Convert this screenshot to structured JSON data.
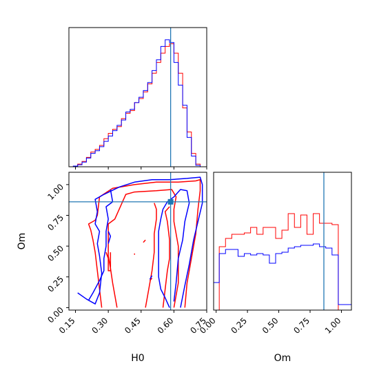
{
  "chart_data": {
    "type": "corner",
    "parameters": [
      "H0",
      "Om"
    ],
    "colors": {
      "red": "#ff0000",
      "blue": "#0000ff",
      "truth": "#1f77b4"
    },
    "truth": {
      "H0": 0.585,
      "Om": 0.86
    },
    "panels": [
      {
        "id": "hist-H0",
        "type": "step-histogram",
        "xlim": [
          0.12,
          0.75
        ],
        "bin_edges": [
          0.12,
          0.14,
          0.16,
          0.18,
          0.2,
          0.22,
          0.24,
          0.26,
          0.28,
          0.3,
          0.32,
          0.34,
          0.36,
          0.38,
          0.4,
          0.42,
          0.44,
          0.46,
          0.48,
          0.5,
          0.52,
          0.54,
          0.56,
          0.58,
          0.6,
          0.62,
          0.64,
          0.66,
          0.68,
          0.7,
          0.72,
          0.74
        ],
        "series": [
          {
            "color": "red",
            "values": [
              0.0,
              0.005,
              0.02,
              0.04,
              0.07,
              0.11,
              0.13,
              0.16,
              0.21,
              0.25,
              0.28,
              0.3,
              0.36,
              0.4,
              0.42,
              0.48,
              0.51,
              0.56,
              0.62,
              0.7,
              0.78,
              0.85,
              0.9,
              0.92,
              0.85,
              0.7,
              0.44,
              0.26,
              0.1,
              0.02,
              0.0
            ]
          },
          {
            "color": "blue",
            "values": [
              0.0,
              0.005,
              0.015,
              0.035,
              0.065,
              0.1,
              0.12,
              0.15,
              0.19,
              0.23,
              0.27,
              0.31,
              0.35,
              0.41,
              0.43,
              0.48,
              0.52,
              0.57,
              0.63,
              0.72,
              0.8,
              0.9,
              0.95,
              0.93,
              0.78,
              0.61,
              0.46,
              0.22,
              0.08,
              0.01,
              0.0
            ]
          }
        ]
      },
      {
        "id": "hist-Om",
        "type": "step-histogram",
        "xlim": [
          -0.02,
          1.08
        ],
        "bin_edges": [
          -0.02,
          0.025,
          0.075,
          0.125,
          0.175,
          0.225,
          0.275,
          0.325,
          0.375,
          0.425,
          0.475,
          0.525,
          0.575,
          0.625,
          0.675,
          0.725,
          0.775,
          0.825,
          0.875,
          0.925,
          0.975,
          1.02,
          1.08
        ],
        "series": [
          {
            "color": "red",
            "values": [
              0.0,
              0.46,
              0.52,
              0.55,
              0.55,
              0.56,
              0.6,
              0.55,
              0.6,
              0.6,
              0.52,
              0.58,
              0.7,
              0.6,
              0.69,
              0.55,
              0.7,
              0.63,
              0.63,
              0.62,
              0.0,
              0.0
            ]
          },
          {
            "color": "blue",
            "values": [
              0.2,
              0.41,
              0.44,
              0.44,
              0.39,
              0.41,
              0.4,
              0.41,
              0.4,
              0.34,
              0.41,
              0.42,
              0.45,
              0.46,
              0.47,
              0.47,
              0.48,
              0.46,
              0.45,
              0.4,
              0.04,
              0.04
            ]
          }
        ]
      },
      {
        "id": "contour-H0-Om",
        "type": "contour",
        "xlim": [
          0.12,
          0.75
        ],
        "ylim": [
          -0.02,
          1.1
        ],
        "series": [
          {
            "color": "red",
            "paths": [
              [
                [
                  0.27,
                  0.0
                ],
                [
                  0.26,
                  0.15
                ],
                [
                  0.25,
                  0.3
                ],
                [
                  0.24,
                  0.45
                ],
                [
                  0.23,
                  0.55
                ],
                [
                  0.22,
                  0.63
                ],
                [
                  0.21,
                  0.68
                ],
                [
                  0.24,
                  0.71
                ],
                [
                  0.25,
                  0.75
                ],
                [
                  0.26,
                  0.9
                ],
                [
                  0.32,
                  0.97
                ],
                [
                  0.42,
                  1.0
                ],
                [
                  0.52,
                  1.02
                ],
                [
                  0.62,
                  1.02
                ],
                [
                  0.7,
                  1.03
                ],
                [
                  0.72,
                  1.04
                ],
                [
                  0.72,
                  0.95
                ],
                [
                  0.71,
                  0.8
                ],
                [
                  0.7,
                  0.6
                ],
                [
                  0.68,
                  0.4
                ],
                [
                  0.66,
                  0.2
                ],
                [
                  0.65,
                  0.0
                ]
              ],
              [
                [
                  0.34,
                  0.0
                ],
                [
                  0.33,
                  0.1
                ],
                [
                  0.32,
                  0.2
                ],
                [
                  0.31,
                  0.32
                ],
                [
                  0.3,
                  0.42
                ],
                [
                  0.3,
                  0.55
                ],
                [
                  0.3,
                  0.68
                ],
                [
                  0.33,
                  0.72
                ],
                [
                  0.35,
                  0.8
                ],
                [
                  0.38,
                  0.92
                ],
                [
                  0.42,
                  0.94
                ],
                [
                  0.52,
                  0.95
                ],
                [
                  0.59,
                  0.96
                ],
                [
                  0.61,
                  0.9
                ],
                [
                  0.6,
                  0.8
                ],
                [
                  0.6,
                  0.7
                ],
                [
                  0.61,
                  0.6
                ],
                [
                  0.62,
                  0.5
                ],
                [
                  0.62,
                  0.4
                ],
                [
                  0.62,
                  0.3
                ],
                [
                  0.62,
                  0.2
                ],
                [
                  0.61,
                  0.1
                ],
                [
                  0.6,
                  0.0
                ]
              ],
              [
                [
                  0.47,
                  0.0
                ],
                [
                  0.48,
                  0.1
                ],
                [
                  0.49,
                  0.2
                ],
                [
                  0.5,
                  0.3
                ],
                [
                  0.51,
                  0.45
                ],
                [
                  0.51,
                  0.6
                ],
                [
                  0.52,
                  0.72
                ],
                [
                  0.52,
                  0.8
                ],
                [
                  0.51,
                  0.85
                ]
              ],
              [
                [
                  0.55,
                  0.0
                ],
                [
                  0.56,
                  0.15
                ],
                [
                  0.57,
                  0.3
                ],
                [
                  0.58,
                  0.4
                ],
                [
                  0.58,
                  0.55
                ],
                [
                  0.57,
                  0.7
                ],
                [
                  0.56,
                  0.78
                ],
                [
                  0.58,
                  0.82
                ]
              ],
              [
                [
                  0.29,
                  0.45
                ],
                [
                  0.3,
                  0.4
                ],
                [
                  0.3,
                  0.3
                ],
                [
                  0.31,
                  0.3
                ],
                [
                  0.31,
                  0.45
                ]
              ],
              [
                [
                  0.46,
                  0.53
                ],
                [
                  0.47,
                  0.55
                ]
              ],
              [
                [
                  0.49,
                  0.22
                ],
                [
                  0.5,
                  0.24
                ]
              ],
              [
                [
                  0.42,
                  0.43
                ],
                [
                  0.42,
                  0.44
                ]
              ]
            ]
          },
          {
            "color": "blue",
            "paths": [
              [
                [
                  0.16,
                  0.12
                ],
                [
                  0.2,
                  0.07
                ],
                [
                  0.24,
                  0.03
                ],
                [
                  0.26,
                  0.12
                ],
                [
                  0.27,
                  0.28
                ],
                [
                  0.26,
                  0.42
                ],
                [
                  0.25,
                  0.52
                ],
                [
                  0.26,
                  0.62
                ],
                [
                  0.24,
                  0.68
                ],
                [
                  0.25,
                  0.78
                ],
                [
                  0.24,
                  0.88
                ],
                [
                  0.28,
                  0.92
                ],
                [
                  0.35,
                  0.98
                ],
                [
                  0.42,
                  1.02
                ],
                [
                  0.5,
                  1.04
                ],
                [
                  0.58,
                  1.04
                ],
                [
                  0.66,
                  1.05
                ],
                [
                  0.72,
                  1.06
                ],
                [
                  0.73,
                  1.0
                ],
                [
                  0.73,
                  0.85
                ],
                [
                  0.71,
                  0.7
                ],
                [
                  0.69,
                  0.55
                ],
                [
                  0.67,
                  0.35
                ],
                [
                  0.65,
                  0.18
                ],
                [
                  0.63,
                  0.0
                ]
              ],
              [
                [
                  0.31,
                  0.96
                ],
                [
                  0.32,
                  0.86
                ],
                [
                  0.29,
                  0.82
                ],
                [
                  0.3,
                  0.72
                ],
                [
                  0.29,
                  0.62
                ],
                [
                  0.29,
                  0.5
                ],
                [
                  0.28,
                  0.4
                ],
                [
                  0.28,
                  0.3
                ],
                [
                  0.26,
                  0.22
                ],
                [
                  0.23,
                  0.12
                ],
                [
                  0.21,
                  0.06
                ]
              ],
              [
                [
                  0.58,
                  0.0
                ],
                [
                  0.56,
                  0.08
                ],
                [
                  0.54,
                  0.15
                ],
                [
                  0.53,
                  0.25
                ],
                [
                  0.53,
                  0.38
                ],
                [
                  0.53,
                  0.5
                ],
                [
                  0.53,
                  0.62
                ],
                [
                  0.54,
                  0.72
                ],
                [
                  0.55,
                  0.8
                ],
                [
                  0.57,
                  0.86
                ],
                [
                  0.6,
                  0.9
                ],
                [
                  0.63,
                  0.96
                ],
                [
                  0.66,
                  0.95
                ],
                [
                  0.67,
                  0.85
                ],
                [
                  0.65,
                  0.7
                ],
                [
                  0.64,
                  0.55
                ],
                [
                  0.62,
                  0.4
                ],
                [
                  0.61,
                  0.2
                ],
                [
                  0.6,
                  0.05
                ]
              ],
              [
                [
                  0.3,
                  0.52
                ],
                [
                  0.31,
                  0.58
                ],
                [
                  0.3,
                  0.62
                ]
              ],
              [
                [
                  0.49,
                  0.23
                ],
                [
                  0.5,
                  0.26
                ]
              ]
            ]
          }
        ]
      }
    ],
    "axes": {
      "H0": {
        "label": "H0",
        "ticks": [
          0.15,
          0.3,
          0.45,
          0.6,
          0.75
        ],
        "tick_labels": [
          "0.15",
          "0.30",
          "0.45",
          "0.60",
          "0.75"
        ]
      },
      "Om_y": {
        "label": "Om",
        "ticks": [
          0.0,
          0.25,
          0.5,
          0.75,
          1.0
        ],
        "tick_labels": [
          "0.00",
          "0.25",
          "0.50",
          "0.75",
          "1.00"
        ]
      },
      "Om_x": {
        "label": "Om",
        "ticks": [
          0.0,
          0.25,
          0.5,
          0.75,
          1.0
        ],
        "tick_labels": [
          "0.00",
          "0.25",
          "0.50",
          "0.75",
          "1.00"
        ]
      }
    }
  }
}
